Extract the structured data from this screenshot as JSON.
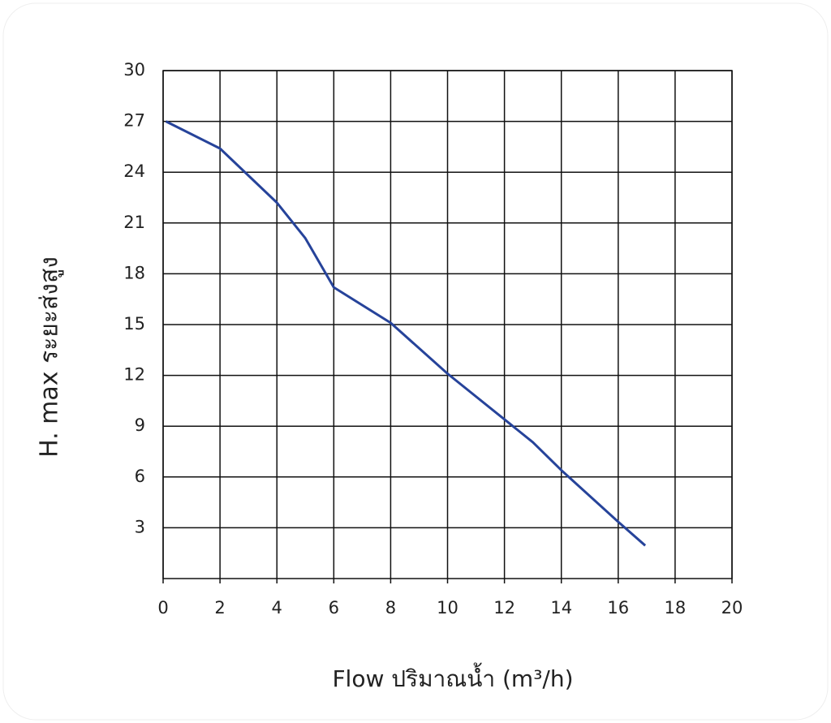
{
  "chart_data": {
    "type": "line",
    "x_label": "Flow  ปริมาณน้ำ (m³/h)",
    "y_label": "H. max  ระยะส่งสูง",
    "series": [
      {
        "color": "#26439a",
        "x": [
          0.1,
          2,
          4,
          5,
          6,
          8,
          10,
          12,
          13,
          14,
          16,
          16.95
        ],
        "values": [
          27,
          25.4,
          22.2,
          20.1,
          17.2,
          15.1,
          12.1,
          9.4,
          8.05,
          6.4,
          3.35,
          1.95
        ]
      }
    ],
    "xlim": [
      0,
      20
    ],
    "xticks": [
      0,
      2,
      4,
      6,
      8,
      10,
      12,
      14,
      16,
      18,
      20
    ],
    "ylim": [
      0,
      30
    ],
    "yticks": [
      3,
      6,
      9,
      12,
      15,
      18,
      21,
      24,
      27,
      30
    ],
    "grid": true
  }
}
